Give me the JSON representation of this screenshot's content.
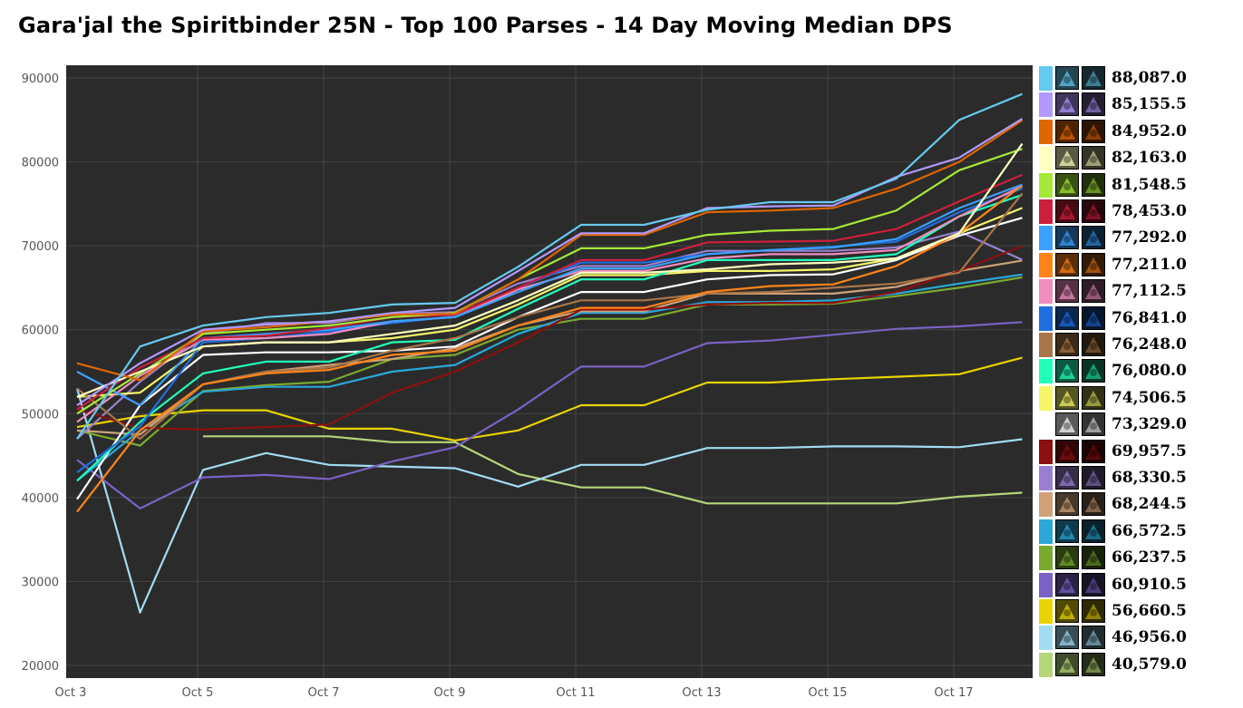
{
  "chart_data": {
    "type": "line",
    "title": "Gara'jal the Spiritbinder 25N - Top 100 Parses - 14 Day Moving Median DPS",
    "xlabel": "",
    "ylabel": "",
    "ylim": [
      20000,
      92000
    ],
    "yticks": [
      "20000",
      "30000",
      "40000",
      "50000",
      "60000",
      "70000",
      "80000",
      "90000"
    ],
    "x": [
      "Oct 3",
      "Oct 4",
      "Oct 5",
      "Oct 6",
      "Oct 7",
      "Oct 8",
      "Oct 9",
      "Oct 10",
      "Oct 11",
      "Oct 12",
      "Oct 13",
      "Oct 14",
      "Oct 15",
      "Oct 16",
      "Oct 17",
      "Oct 18"
    ],
    "xticks": [
      "Oct 3",
      "Oct 5",
      "Oct 7",
      "Oct 9",
      "Oct 11",
      "Oct 13",
      "Oct 15",
      "Oct 17"
    ],
    "grid": true,
    "legend_position": "right",
    "series": [
      {
        "label": "88,087.0",
        "color": "#66c9ee",
        "values": [
          47000,
          58000,
          60500,
          61500,
          62000,
          63000,
          63200,
          67500,
          72500,
          72500,
          74300,
          75200,
          75200,
          78000,
          85000,
          88087
        ]
      },
      {
        "label": "85,155.5",
        "color": "#b399ff",
        "values": [
          51000,
          56000,
          60000,
          60600,
          61000,
          62000,
          62600,
          67000,
          71500,
          71500,
          74500,
          74700,
          74800,
          78200,
          80500,
          85155
        ]
      },
      {
        "label": "84,952.0",
        "color": "#e06600",
        "values": [
          56000,
          54000,
          59800,
          60300,
          61000,
          61800,
          61900,
          66000,
          71300,
          71300,
          74000,
          74200,
          74500,
          76800,
          80000,
          84952
        ]
      },
      {
        "label": "82,163.0",
        "color": "#ffffc0",
        "values": [
          52000,
          55000,
          58000,
          58500,
          58500,
          59500,
          60500,
          63500,
          66800,
          66800,
          67200,
          67800,
          68000,
          68500,
          71500,
          82163
        ]
      },
      {
        "label": "81,548.5",
        "color": "#a5e838",
        "values": [
          50000,
          54800,
          59500,
          60000,
          60500,
          61500,
          62000,
          66000,
          69700,
          69700,
          71300,
          71800,
          72000,
          74200,
          79000,
          81548
        ]
      },
      {
        "label": "78,453.0",
        "color": "#cc1f3c",
        "values": [
          50500,
          55500,
          59000,
          59300,
          60200,
          61500,
          61800,
          65000,
          68300,
          68300,
          70400,
          70500,
          70600,
          72000,
          75300,
          78453
        ]
      },
      {
        "label": "77,292.0",
        "color": "#3da0ff",
        "values": [
          55000,
          51000,
          59000,
          59500,
          60000,
          61000,
          61500,
          64500,
          67300,
          67300,
          69000,
          69500,
          69800,
          70800,
          74500,
          77292
        ]
      },
      {
        "label": "77,211.0",
        "color": "#ff8419",
        "values": [
          38300,
          48000,
          53500,
          54800,
          55200,
          57000,
          57500,
          60500,
          62600,
          62600,
          64500,
          65200,
          65400,
          67600,
          71500,
          77211
        ]
      },
      {
        "label": "77,112.5",
        "color": "#f08ec0",
        "values": [
          49000,
          54500,
          58800,
          59000,
          59500,
          61000,
          61500,
          64800,
          67000,
          67000,
          68500,
          69000,
          69000,
          69500,
          73500,
          77112
        ]
      },
      {
        "label": "76,841.0",
        "color": "#1f6fe0",
        "values": [
          43000,
          48500,
          58500,
          59000,
          59800,
          60800,
          61600,
          65000,
          68000,
          68000,
          69000,
          69500,
          69900,
          70500,
          74000,
          76841
        ]
      },
      {
        "label": "76,248.0",
        "color": "#a87648",
        "values": [
          53000,
          47000,
          53500,
          55000,
          55500,
          57500,
          59000,
          61500,
          63500,
          63500,
          64300,
          64500,
          65000,
          65500,
          66800,
          76248
        ]
      },
      {
        "label": "76,080.0",
        "color": "#22ffbb",
        "values": [
          42000,
          49000,
          54800,
          56200,
          56200,
          58500,
          58800,
          62500,
          66000,
          66000,
          68300,
          68300,
          68300,
          69000,
          73500,
          76080
        ]
      },
      {
        "label": "74,506.5",
        "color": "#f5f56a",
        "values": [
          52000,
          52500,
          58000,
          58500,
          58500,
          59000,
          60000,
          63000,
          66500,
          66500,
          67000,
          67000,
          67200,
          68500,
          71500,
          74506
        ]
      },
      {
        "label": "73,329.0",
        "color": "#ffffff",
        "values": [
          39800,
          51000,
          57000,
          57300,
          57300,
          57500,
          58000,
          61500,
          64500,
          64500,
          66000,
          66500,
          66600,
          68300,
          71200,
          73329
        ]
      },
      {
        "label": "69,957.5",
        "color": "#8c1010",
        "values": [
          50500,
          48300,
          48100,
          48400,
          48700,
          52500,
          55000,
          58500,
          62400,
          62400,
          63000,
          63200,
          63200,
          64500,
          67000,
          69957
        ]
      },
      {
        "label": "68,330.5",
        "color": "#9a81d0",
        "values": [
          47000,
          53800,
          59500,
          60800,
          60800,
          61900,
          62100,
          65500,
          67600,
          67600,
          69400,
          69400,
          69400,
          69800,
          71700,
          68330
        ]
      },
      {
        "label": "68,244.5",
        "color": "#cfa27a",
        "values": [
          48000,
          47500,
          53500,
          55000,
          55800,
          56500,
          57800,
          60500,
          62200,
          62200,
          64300,
          64300,
          64300,
          65100,
          67000,
          68244
        ]
      },
      {
        "label": "66,572.5",
        "color": "#2ba7d9",
        "values": [
          42000,
          48000,
          52600,
          53200,
          53200,
          55000,
          55800,
          59500,
          62000,
          62000,
          63300,
          63300,
          63500,
          64300,
          65500,
          66572
        ]
      },
      {
        "label": "66,237.5",
        "color": "#7aaa2f",
        "values": [
          48000,
          46200,
          52700,
          53400,
          53800,
          56500,
          57000,
          60000,
          61300,
          61300,
          63000,
          63000,
          63100,
          64000,
          65000,
          66237
        ]
      },
      {
        "label": "60,910.5",
        "color": "#7a62c4",
        "values": [
          44500,
          38700,
          42400,
          42700,
          42200,
          44300,
          46000,
          50500,
          55600,
          55600,
          58400,
          58700,
          59400,
          60100,
          60400,
          60910
        ]
      },
      {
        "label": "56,660.5",
        "color": "#e8d400",
        "values": [
          48400,
          49700,
          50400,
          50400,
          48200,
          48200,
          46800,
          48000,
          51000,
          51000,
          53700,
          53700,
          54100,
          54400,
          54700,
          56660
        ]
      },
      {
        "label": "46,956.0",
        "color": "#a2dcf2",
        "values": [
          53000,
          26300,
          43300,
          45300,
          43900,
          43700,
          43500,
          41300,
          43900,
          43900,
          45900,
          45900,
          46100,
          46100,
          46000,
          46956
        ]
      },
      {
        "label": "40,579.0",
        "color": "#b5d67a",
        "values": [
          null,
          null,
          47300,
          47300,
          47300,
          46600,
          46600,
          42800,
          41200,
          41200,
          39300,
          39300,
          39300,
          39300,
          40100,
          40579
        ]
      }
    ]
  }
}
